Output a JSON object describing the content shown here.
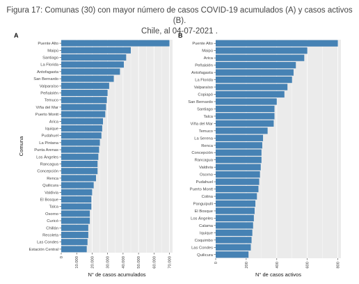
{
  "title_line1": "Figura 17: Comunas (30) con mayor número de casos COVID-19 acumulados (A) y casos activos (B).",
  "title_line2": "Chile, al 04-07-2021 .",
  "colors": {
    "bar": "#4682b4",
    "panel_bg": "#ebebeb",
    "grid": "#ffffff"
  },
  "chart_data": [
    {
      "type": "bar",
      "orientation": "horizontal",
      "panel_label": "A",
      "title": "",
      "ylabel": "Comuna",
      "xlabel": "N° de casos acumulados",
      "xlim": [
        0,
        72000
      ],
      "xticks": [
        "0",
        "10.000",
        "20.000",
        "30.000",
        "40.000",
        "50.000",
        "60.000",
        "70.000"
      ],
      "xtick_values": [
        0,
        10000,
        20000,
        30000,
        40000,
        50000,
        60000,
        70000
      ],
      "grid": true,
      "categories": [
        "Puente Alto",
        "Maipú",
        "Santiago",
        "La Florida",
        "Antofagasta",
        "San Bernardo",
        "Valparaíso",
        "Peñalolén",
        "Temuco",
        "Viña del Mar",
        "Puerto Montt",
        "Arica",
        "Iquique",
        "Pudahuel",
        "La Pintana",
        "Punta Arenas",
        "Los Ángeles",
        "Rancagua",
        "Concepción",
        "Renca",
        "Quilicura",
        "Valdivia",
        "El Bosque",
        "Talca",
        "Osorno",
        "Curicó",
        "Chillán",
        "Recoleta",
        "Las Condes",
        "Estación Central"
      ],
      "values": [
        70000,
        45000,
        42000,
        40500,
        38000,
        34000,
        31000,
        30000,
        29500,
        29000,
        28500,
        27000,
        26500,
        26000,
        25000,
        24500,
        24000,
        23500,
        23500,
        22500,
        21000,
        20000,
        19500,
        19500,
        18500,
        18500,
        17500,
        17500,
        17000,
        16500
      ]
    },
    {
      "type": "bar",
      "orientation": "horizontal",
      "panel_label": "B",
      "title": "",
      "ylabel": "",
      "xlabel": "N° de casos activos",
      "xlim": [
        0,
        820
      ],
      "xticks": [
        "0",
        "200",
        "400",
        "600",
        "800"
      ],
      "xtick_values": [
        0,
        200,
        400,
        600,
        800
      ],
      "grid": true,
      "categories": [
        "Puente Alto",
        "Maipú",
        "Arica",
        "Peñalolén",
        "Antofagasta",
        "La Florida",
        "Valparaíso",
        "Copiapó",
        "San Bernardo",
        "Santiago",
        "Talca",
        "Viña del Mar",
        "Temuco",
        "La Serena",
        "Renca",
        "Concepción",
        "Rancagua",
        "Valdivia",
        "Osorno",
        "Pudahuel",
        "Puerto Montt",
        "Colina",
        "Panguipulli",
        "El Bosque",
        "Los Ángeles",
        "Calama",
        "Iquique",
        "Coquimbo",
        "Las Condes",
        "Quilicura"
      ],
      "values": [
        800,
        600,
        580,
        525,
        510,
        500,
        470,
        450,
        400,
        385,
        385,
        380,
        340,
        310,
        305,
        300,
        300,
        295,
        290,
        285,
        280,
        270,
        260,
        255,
        250,
        245,
        240,
        235,
        230,
        215
      ]
    }
  ]
}
